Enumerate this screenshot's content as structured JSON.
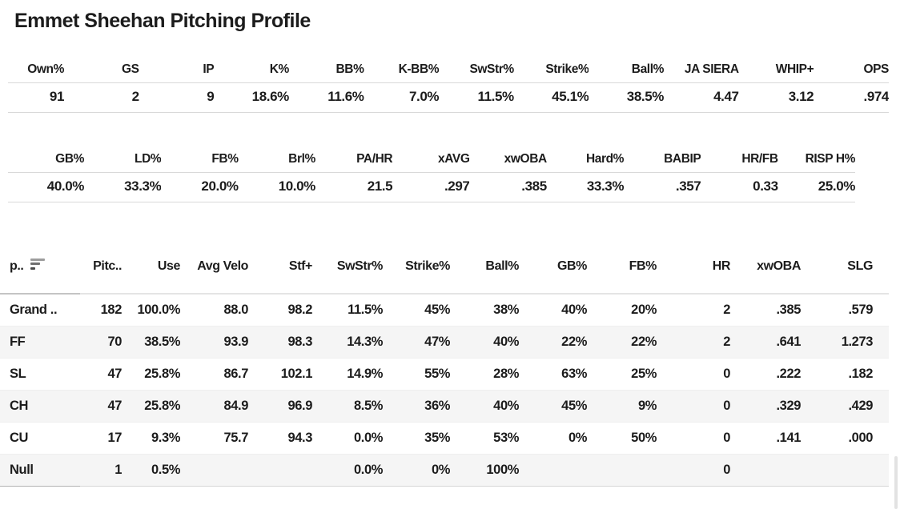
{
  "title": "Emmet Sheehan Pitching Profile",
  "summary_table_1": {
    "columns": [
      "Own%",
      "GS",
      "IP",
      "K%",
      "BB%",
      "K-BB%",
      "SwStr%",
      "Strike%",
      "Ball%",
      "JA SIERA",
      "WHIP+",
      "OPS"
    ],
    "values": [
      "91",
      "2",
      "9",
      "18.6%",
      "11.6%",
      "7.0%",
      "11.5%",
      "45.1%",
      "38.5%",
      "4.47",
      "3.12",
      ".974"
    ]
  },
  "summary_table_2": {
    "columns": [
      "GB%",
      "LD%",
      "FB%",
      "Brl%",
      "PA/HR",
      "xAVG",
      "xwOBA",
      "Hard%",
      "BABIP",
      "HR/FB",
      "RISP H%"
    ],
    "values": [
      "40.0%",
      "33.3%",
      "20.0%",
      "10.0%",
      "21.5",
      ".297",
      ".385",
      "33.3%",
      ".357",
      "0.33",
      "25.0%"
    ]
  },
  "pitch_table": {
    "columns": [
      "p..",
      "Pitc..",
      "Use",
      "Avg Velo",
      "Stf+",
      "SwStr%",
      "Strike%",
      "Ball%",
      "GB%",
      "FB%",
      "HR",
      "xwOBA",
      "SLG"
    ],
    "sort_icon": "sort-descending",
    "rows": [
      [
        "Grand ..",
        "182",
        "100.0%",
        "88.0",
        "98.2",
        "11.5%",
        "45%",
        "38%",
        "40%",
        "20%",
        "2",
        ".385",
        ".579"
      ],
      [
        "FF",
        "70",
        "38.5%",
        "93.9",
        "98.3",
        "14.3%",
        "47%",
        "40%",
        "22%",
        "22%",
        "2",
        ".641",
        "1.273"
      ],
      [
        "SL",
        "47",
        "25.8%",
        "86.7",
        "102.1",
        "14.9%",
        "55%",
        "28%",
        "63%",
        "25%",
        "0",
        ".222",
        ".182"
      ],
      [
        "CH",
        "47",
        "25.8%",
        "84.9",
        "96.9",
        "8.5%",
        "36%",
        "40%",
        "45%",
        "9%",
        "0",
        ".329",
        ".429"
      ],
      [
        "CU",
        "17",
        "9.3%",
        "75.7",
        "94.3",
        "0.0%",
        "35%",
        "53%",
        "0%",
        "50%",
        "0",
        ".141",
        ".000"
      ],
      [
        "Null",
        "1",
        "0.5%",
        "",
        "",
        "0.0%",
        "0%",
        "100%",
        "",
        "",
        "0",
        "",
        ""
      ]
    ]
  },
  "colors": {
    "text": "#1c1c1c",
    "border": "#d9d9d9",
    "row_alt_background": "#f5f5f5",
    "scrollbar_thumb": "#e2e2e2"
  }
}
